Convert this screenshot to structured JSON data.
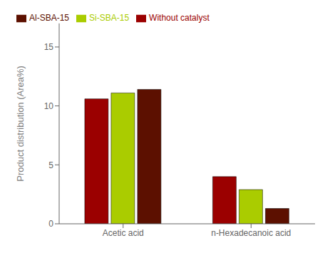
{
  "chart_data": {
    "type": "bar",
    "categories": [
      "Acetic acid",
      "n-Hexadecanoic acid"
    ],
    "series": [
      {
        "name": "Without catalyst",
        "color": "#9B0000",
        "values": [
          10.6,
          4.0
        ]
      },
      {
        "name": "Si-SBA-15",
        "color": "#AACC00",
        "values": [
          11.1,
          2.9
        ]
      },
      {
        "name": "Al-SBA-15",
        "color": "#5C1000",
        "values": [
          11.4,
          1.3
        ]
      }
    ],
    "y_label": "Product distribution (Area%)",
    "ylim": [
      0,
      17
    ],
    "yticks": [
      0,
      5,
      10,
      15
    ],
    "grid": false,
    "legend": "upper left"
  }
}
